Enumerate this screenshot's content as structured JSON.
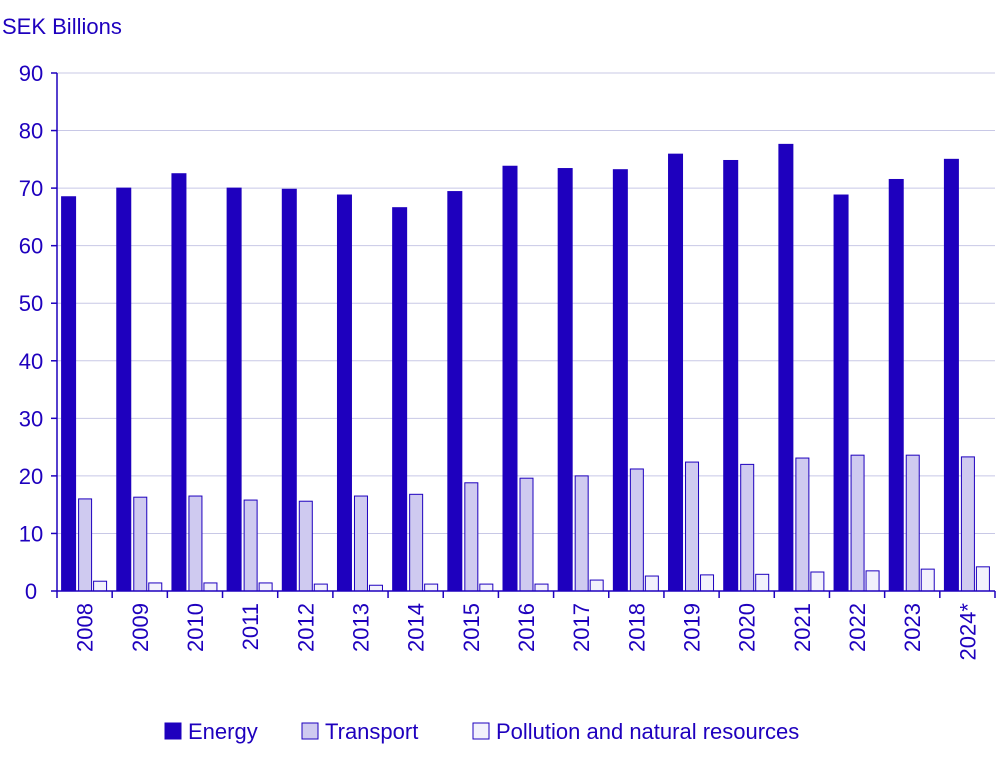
{
  "chart_data": {
    "type": "bar",
    "title": "",
    "ylabel": "SEK Billions",
    "xlabel": "",
    "ylim": [
      0,
      90
    ],
    "yticks": [
      "0",
      "10",
      "20",
      "30",
      "40",
      "50",
      "60",
      "70",
      "80",
      "90"
    ],
    "grid": true,
    "legend_position": "bottom",
    "categories": [
      "2008",
      "2009",
      "2010",
      "2011",
      "2012",
      "2013",
      "2014",
      "2015",
      "2016",
      "2017",
      "2018",
      "2019",
      "2020",
      "2021",
      "2022",
      "2023",
      "2024*"
    ],
    "series": [
      {
        "name": "Energy",
        "color": "#1e00be",
        "stroke": "#1e00be",
        "values": [
          68.5,
          70.0,
          72.5,
          70.0,
          69.8,
          68.8,
          66.6,
          69.4,
          73.8,
          73.4,
          73.2,
          75.9,
          74.8,
          77.6,
          68.8,
          71.5,
          75.0
        ]
      },
      {
        "name": "Transport",
        "color": "#cfcaf0",
        "stroke": "#1e00be",
        "values": [
          16.0,
          16.3,
          16.5,
          15.8,
          15.6,
          16.5,
          16.8,
          18.8,
          19.6,
          20.0,
          21.2,
          22.4,
          22.0,
          23.1,
          23.6,
          23.6,
          23.3
        ]
      },
      {
        "name": "Pollution and natural resources",
        "color": "#f2f1fc",
        "stroke": "#1e00be",
        "values": [
          1.7,
          1.4,
          1.4,
          1.4,
          1.2,
          1.0,
          1.2,
          1.2,
          1.2,
          1.9,
          2.6,
          2.8,
          2.9,
          3.3,
          3.5,
          3.8,
          4.2
        ]
      }
    ]
  }
}
